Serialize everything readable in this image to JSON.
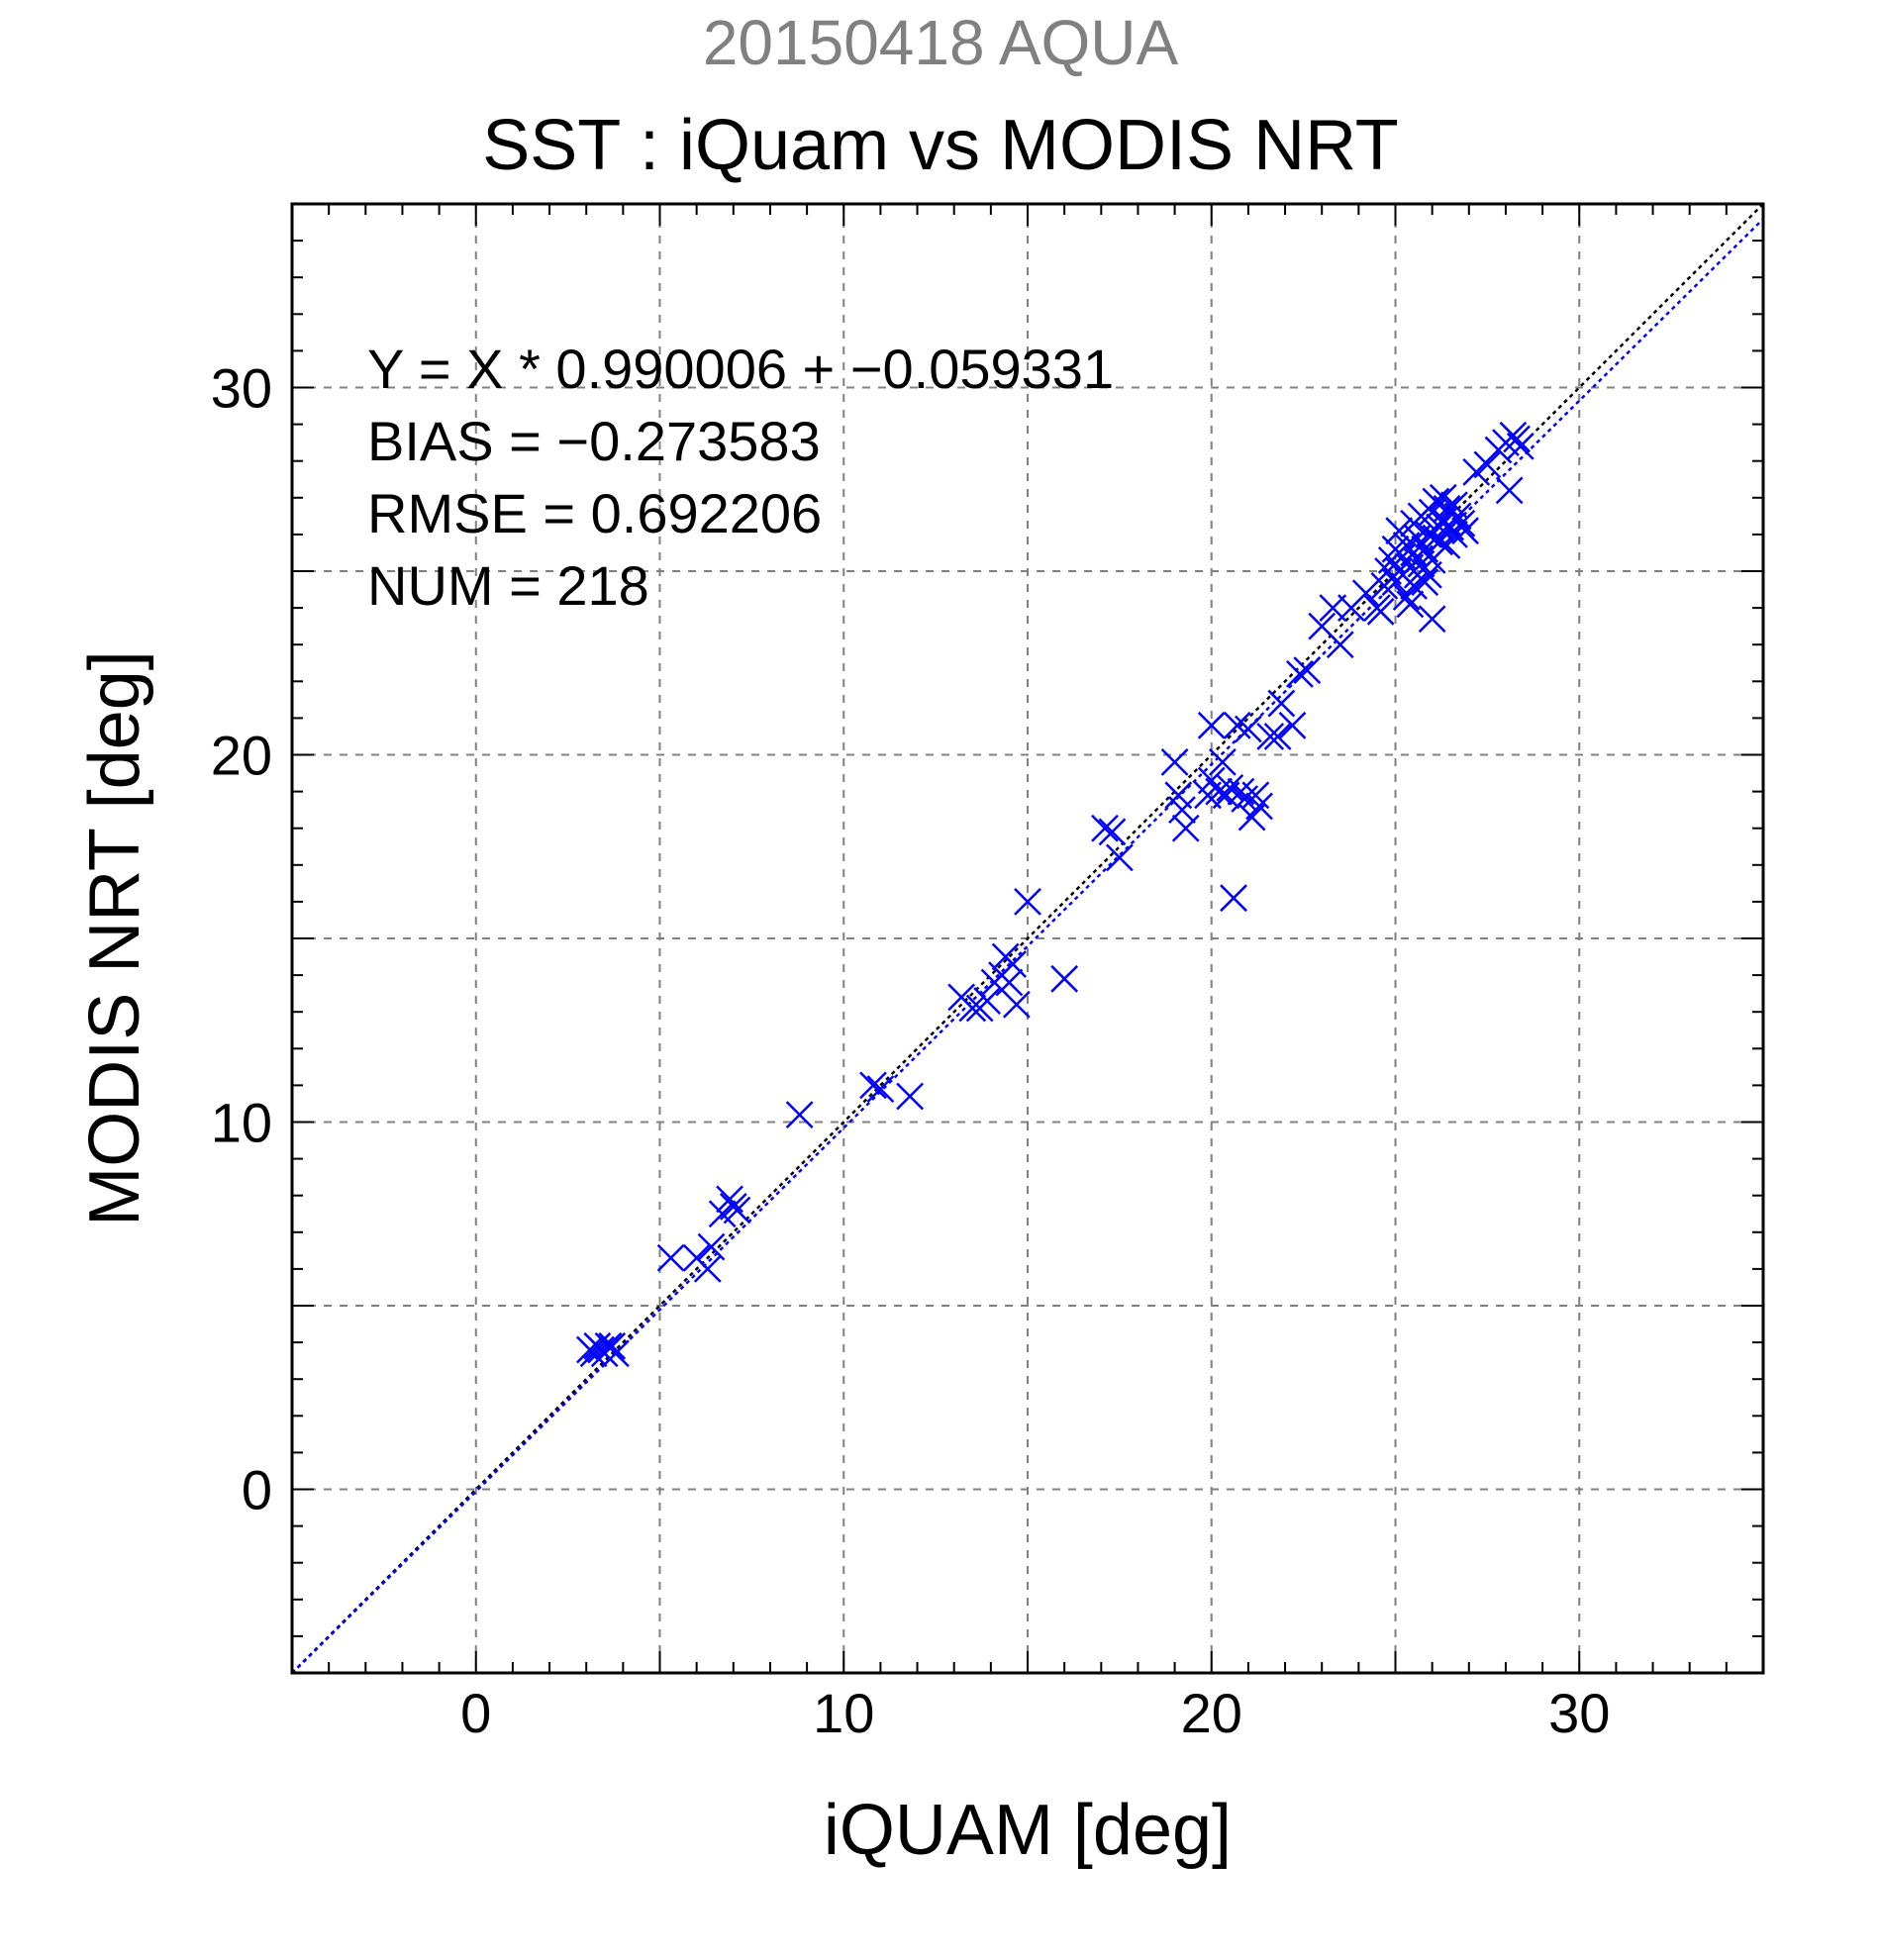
{
  "chart_data": {
    "type": "scatter",
    "supertitle": "20150418 AQUA",
    "title": "SST : iQuam vs MODIS NRT",
    "xlabel": "iQUAM [deg]",
    "ylabel": "MODIS NRT [deg]",
    "xlim": [
      -5,
      35
    ],
    "ylim": [
      -5,
      35
    ],
    "xticks": [
      "0",
      "10",
      "20",
      "30"
    ],
    "yticks": [
      "0",
      "10",
      "20",
      "30"
    ],
    "grid": true,
    "annotations": [
      "Y = X * 0.990006 + −0.059331",
      "BIAS = −0.273583",
      "RMSE = 0.692206",
      "NUM = 218"
    ],
    "regression": {
      "slope": 0.990006,
      "intercept": -0.059331,
      "color": "#0000ff"
    },
    "identity_line": {
      "color": "#000000"
    },
    "marker": {
      "shape": "x",
      "color": "#0000ff"
    },
    "points": [
      [
        3.1,
        3.8
      ],
      [
        3.3,
        3.9
      ],
      [
        3.5,
        3.7
      ],
      [
        3.7,
        3.9
      ],
      [
        3.2,
        3.7
      ],
      [
        3.4,
        3.8
      ],
      [
        3.6,
        3.9
      ],
      [
        3.8,
        3.7
      ],
      [
        5.3,
        6.3
      ],
      [
        6.0,
        6.3
      ],
      [
        6.3,
        6.0
      ],
      [
        6.4,
        6.6
      ],
      [
        6.7,
        7.5
      ],
      [
        6.9,
        7.9
      ],
      [
        7.0,
        7.7
      ],
      [
        7.1,
        7.6
      ],
      [
        8.8,
        10.2
      ],
      [
        10.8,
        11.0
      ],
      [
        11.0,
        10.9
      ],
      [
        11.8,
        10.7
      ],
      [
        13.2,
        13.4
      ],
      [
        13.5,
        13.1
      ],
      [
        13.7,
        13.1
      ],
      [
        13.9,
        13.3
      ],
      [
        14.1,
        13.8
      ],
      [
        14.3,
        14.0
      ],
      [
        14.5,
        13.8
      ],
      [
        14.6,
        14.3
      ],
      [
        14.7,
        13.2
      ],
      [
        14.4,
        14.5
      ],
      [
        15.0,
        16.0
      ],
      [
        16.0,
        13.9
      ],
      [
        17.1,
        18.0
      ],
      [
        17.3,
        17.9
      ],
      [
        17.5,
        17.2
      ],
      [
        19.0,
        19.8
      ],
      [
        19.1,
        18.9
      ],
      [
        19.2,
        18.5
      ],
      [
        19.3,
        18.0
      ],
      [
        19.9,
        18.9
      ],
      [
        20.0,
        19.3
      ],
      [
        20.0,
        20.8
      ],
      [
        20.2,
        19.0
      ],
      [
        20.3,
        19.8
      ],
      [
        20.4,
        18.9
      ],
      [
        20.5,
        19.1
      ],
      [
        20.6,
        16.1
      ],
      [
        20.7,
        20.8
      ],
      [
        20.8,
        19.0
      ],
      [
        20.9,
        18.8
      ],
      [
        21.0,
        20.7
      ],
      [
        21.1,
        18.3
      ],
      [
        21.2,
        18.9
      ],
      [
        21.3,
        18.6
      ],
      [
        21.6,
        20.5
      ],
      [
        21.8,
        20.5
      ],
      [
        21.9,
        21.4
      ],
      [
        22.2,
        20.8
      ],
      [
        22.4,
        22.2
      ],
      [
        22.6,
        22.3
      ],
      [
        23.0,
        23.5
      ],
      [
        23.3,
        24.0
      ],
      [
        23.5,
        23.0
      ],
      [
        23.8,
        24.0
      ],
      [
        24.2,
        24.4
      ],
      [
        24.5,
        24.0
      ],
      [
        24.6,
        23.9
      ],
      [
        24.7,
        24.6
      ],
      [
        24.8,
        25.0
      ],
      [
        24.9,
        25.3
      ],
      [
        25.0,
        24.7
      ],
      [
        25.0,
        25.6
      ],
      [
        25.1,
        26.1
      ],
      [
        25.1,
        25.0
      ],
      [
        25.2,
        24.9
      ],
      [
        25.2,
        25.4
      ],
      [
        25.3,
        24.3
      ],
      [
        25.3,
        25.7
      ],
      [
        25.4,
        24.1
      ],
      [
        25.4,
        25.1
      ],
      [
        25.5,
        24.6
      ],
      [
        25.5,
        26.3
      ],
      [
        25.5,
        25.5
      ],
      [
        25.6,
        24.9
      ],
      [
        25.6,
        25.9
      ],
      [
        25.7,
        25.2
      ],
      [
        25.7,
        26.5
      ],
      [
        25.8,
        24.7
      ],
      [
        25.8,
        25.6
      ],
      [
        25.9,
        26.0
      ],
      [
        25.9,
        24.9
      ],
      [
        26.0,
        23.7
      ],
      [
        26.0,
        25.3
      ],
      [
        26.0,
        26.6
      ],
      [
        26.1,
        25.9
      ],
      [
        26.1,
        26.9
      ],
      [
        26.2,
        26.2
      ],
      [
        26.2,
        25.8
      ],
      [
        26.3,
        27.0
      ],
      [
        26.3,
        26.4
      ],
      [
        26.4,
        25.7
      ],
      [
        26.4,
        26.7
      ],
      [
        26.5,
        26.2
      ],
      [
        26.6,
        26.8
      ],
      [
        26.6,
        26.0
      ],
      [
        26.7,
        26.5
      ],
      [
        26.8,
        26.3
      ],
      [
        26.9,
        26.1
      ],
      [
        27.2,
        27.7
      ],
      [
        27.5,
        27.9
      ],
      [
        27.8,
        28.3
      ],
      [
        28.0,
        28.5
      ],
      [
        28.1,
        27.2
      ],
      [
        28.2,
        28.7
      ],
      [
        28.3,
        28.6
      ],
      [
        28.4,
        28.4
      ]
    ]
  }
}
